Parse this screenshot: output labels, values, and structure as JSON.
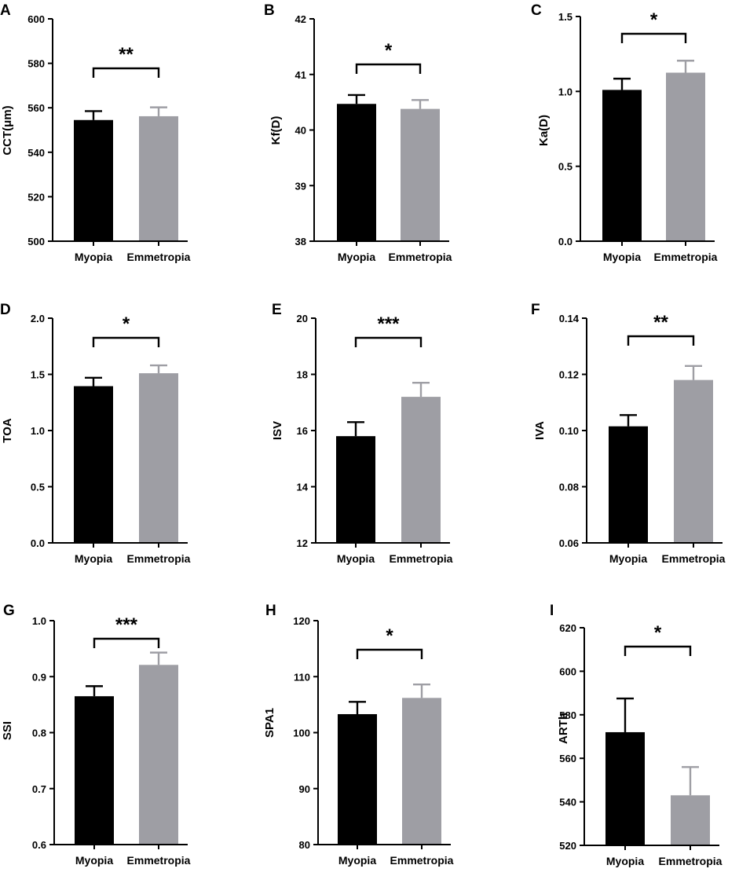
{
  "colors": {
    "myopia": "#000000",
    "emmetropia": "#9e9ea4",
    "axis": "#000000"
  },
  "chart_data": [
    {
      "panel": "A",
      "type": "bar",
      "categories": [
        "Myopia",
        "Emmetropia"
      ],
      "values": [
        554.5,
        556.2
      ],
      "errors": [
        4.0,
        4.0
      ],
      "ylabel": "CCT(μm)",
      "ylim": [
        500,
        600
      ],
      "yticks": [
        500,
        520,
        540,
        560,
        580,
        600
      ],
      "tick_labels": [
        "500",
        "520",
        "540",
        "560",
        "580",
        "600"
      ],
      "significance": "**"
    },
    {
      "panel": "B",
      "type": "bar",
      "categories": [
        "Myopia",
        "Emmetropia"
      ],
      "values": [
        40.47,
        40.38
      ],
      "errors": [
        0.16,
        0.16
      ],
      "ylabel": "Kf(D)",
      "ylim": [
        38,
        42
      ],
      "yticks": [
        38,
        39,
        40,
        41,
        42
      ],
      "tick_labels": [
        "38",
        "39",
        "40",
        "41",
        "42"
      ],
      "significance": "*"
    },
    {
      "panel": "C",
      "type": "bar",
      "categories": [
        "Myopia",
        "Emmetropia"
      ],
      "values": [
        1.01,
        1.125
      ],
      "errors": [
        0.075,
        0.08
      ],
      "ylabel": "Ka(D)",
      "ylim": [
        0,
        1.5
      ],
      "yticks": [
        0,
        0.5,
        1.0,
        1.5
      ],
      "tick_labels": [
        "0.0",
        "0.5",
        "1.0",
        "1.5"
      ],
      "significance": "*"
    },
    {
      "panel": "D",
      "type": "bar",
      "categories": [
        "Myopia",
        "Emmetropia"
      ],
      "values": [
        1.395,
        1.51
      ],
      "errors": [
        0.075,
        0.07
      ],
      "ylabel": "TOA",
      "ylim": [
        0,
        2.0
      ],
      "yticks": [
        0,
        0.5,
        1.0,
        1.5,
        2.0
      ],
      "tick_labels": [
        "0.0",
        "0.5",
        "1.0",
        "1.5",
        "2.0"
      ],
      "significance": "*"
    },
    {
      "panel": "E",
      "type": "bar",
      "categories": [
        "Myopia",
        "Emmetropia"
      ],
      "values": [
        15.8,
        17.2
      ],
      "errors": [
        0.5,
        0.5
      ],
      "ylabel": "ISV",
      "ylim": [
        12,
        20
      ],
      "yticks": [
        12,
        14,
        16,
        18,
        20
      ],
      "tick_labels": [
        "12",
        "14",
        "16",
        "18",
        "20"
      ],
      "significance": "***"
    },
    {
      "panel": "F",
      "type": "bar",
      "categories": [
        "Myopia",
        "Emmetropia"
      ],
      "values": [
        0.1015,
        0.118
      ],
      "errors": [
        0.004,
        0.005
      ],
      "ylabel": "IVA",
      "ylim": [
        0.06,
        0.14
      ],
      "yticks": [
        0.06,
        0.08,
        0.1,
        0.12,
        0.14
      ],
      "tick_labels": [
        "0.06",
        "0.08",
        "0.10",
        "0.12",
        "0.14"
      ],
      "significance": "**"
    },
    {
      "panel": "G",
      "type": "bar",
      "categories": [
        "Myopia",
        "Emmetropia"
      ],
      "values": [
        0.865,
        0.921
      ],
      "errors": [
        0.018,
        0.022
      ],
      "ylabel": "SSI",
      "ylim": [
        0.6,
        1.0
      ],
      "yticks": [
        0.6,
        0.7,
        0.8,
        0.9,
        1.0
      ],
      "tick_labels": [
        "0.6",
        "0.7",
        "0.8",
        "0.9",
        "1.0"
      ],
      "significance": "***"
    },
    {
      "panel": "H",
      "type": "bar",
      "categories": [
        "Myopia",
        "Emmetropia"
      ],
      "values": [
        103.3,
        106.2
      ],
      "errors": [
        2.2,
        2.4
      ],
      "ylabel": "SPA1",
      "ylim": [
        80,
        120
      ],
      "yticks": [
        80,
        90,
        100,
        110,
        120
      ],
      "tick_labels": [
        "80",
        "90",
        "100",
        "110",
        "120"
      ],
      "significance": "*"
    },
    {
      "panel": "I",
      "type": "bar",
      "categories": [
        "Myopia",
        "Emmetropia"
      ],
      "values": [
        572,
        543
      ],
      "errors": [
        15.5,
        13
      ],
      "ylabel": "ARTh",
      "ylim": [
        520,
        620
      ],
      "yticks": [
        520,
        540,
        560,
        580,
        600,
        620
      ],
      "tick_labels": [
        "520",
        "540",
        "560",
        "580",
        "600",
        "620"
      ],
      "significance": "*"
    }
  ]
}
